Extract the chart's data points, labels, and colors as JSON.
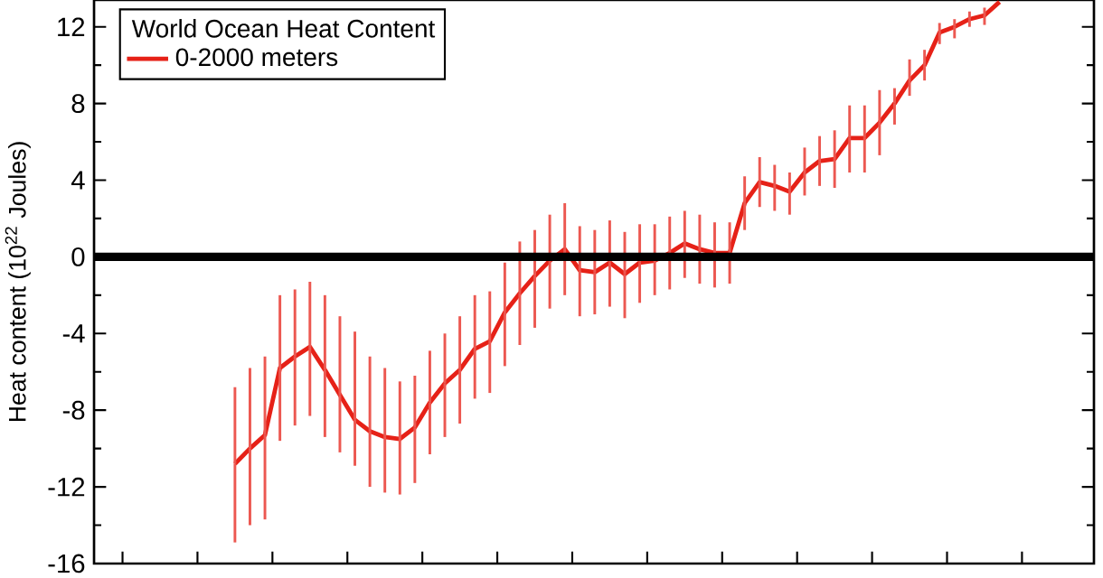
{
  "chart_data": {
    "type": "line",
    "ylabel": "Heat content (10$^{22}$ Joules)",
    "legend_title": "World Ocean Heat Content",
    "categories": [
      null,
      null,
      null,
      null,
      null,
      null,
      null,
      null,
      null,
      null,
      null,
      null,
      null,
      null,
      null,
      null,
      null,
      null,
      null,
      null,
      null,
      null,
      null,
      null,
      null,
      null,
      null,
      null,
      null,
      null,
      null,
      null,
      null,
      null,
      null,
      null,
      null,
      null,
      null,
      null,
      null,
      null,
      null,
      null,
      null,
      null,
      null,
      null,
      null,
      null,
      null,
      null
    ],
    "series": [
      {
        "name": "0-2000 meters",
        "color": "#e62117",
        "values": [
          -10.8,
          -10.0,
          -9.3,
          -5.8,
          -5.2,
          -4.7,
          -5.9,
          -7.2,
          -8.5,
          -9.1,
          -9.4,
          -9.5,
          -8.9,
          -7.6,
          -6.6,
          -5.9,
          -4.8,
          -4.4,
          -2.9,
          -1.9,
          -1.0,
          -0.2,
          0.4,
          -0.7,
          -0.8,
          -0.3,
          -0.9,
          -0.3,
          -0.2,
          0.2,
          0.7,
          0.4,
          0.2,
          0.2,
          2.8,
          3.9,
          3.7,
          3.4,
          4.4,
          5.0,
          5.1,
          6.2,
          6.2,
          7.0,
          8.0,
          9.2,
          10.0,
          11.7,
          12.0,
          12.4,
          12.6,
          13.3
        ],
        "errors": [
          [
            -14.9,
            -6.8
          ],
          [
            -14.0,
            -5.8
          ],
          [
            -13.7,
            -5.2
          ],
          [
            -9.6,
            -2.0
          ],
          [
            -8.8,
            -1.7
          ],
          [
            -8.3,
            -1.3
          ],
          [
            -9.4,
            -2.0
          ],
          [
            -10.2,
            -3.1
          ],
          [
            -10.9,
            -3.9
          ],
          [
            -12.0,
            -5.2
          ],
          [
            -12.3,
            -5.8
          ],
          [
            -12.4,
            -6.5
          ],
          [
            -11.8,
            -6.2
          ],
          [
            -10.3,
            -4.9
          ],
          [
            -9.4,
            -4.0
          ],
          [
            -8.7,
            -3.1
          ],
          [
            -7.4,
            -2.0
          ],
          [
            -7.1,
            -1.8
          ],
          [
            -5.7,
            -0.3
          ],
          [
            -4.6,
            0.8
          ],
          [
            -3.7,
            1.4
          ],
          [
            -2.7,
            2.2
          ],
          [
            -2.0,
            2.8
          ],
          [
            -3.1,
            1.6
          ],
          [
            -3.0,
            1.4
          ],
          [
            -2.6,
            1.9
          ],
          [
            -3.2,
            1.3
          ],
          [
            -2.4,
            1.7
          ],
          [
            -2.0,
            1.7
          ],
          [
            -1.7,
            2.1
          ],
          [
            -1.1,
            2.4
          ],
          [
            -1.4,
            2.2
          ],
          [
            -1.6,
            1.8
          ],
          [
            -1.4,
            1.8
          ],
          [
            1.4,
            4.2
          ],
          [
            2.6,
            5.2
          ],
          [
            2.4,
            4.8
          ],
          [
            2.2,
            4.4
          ],
          [
            3.2,
            5.7
          ],
          [
            3.7,
            6.3
          ],
          [
            3.6,
            6.6
          ],
          [
            4.4,
            7.9
          ],
          [
            4.4,
            7.9
          ],
          [
            5.3,
            8.7
          ],
          [
            6.9,
            8.8
          ],
          [
            8.4,
            10.3
          ],
          [
            9.2,
            10.8
          ],
          [
            11.1,
            12.2
          ],
          [
            11.4,
            12.4
          ],
          [
            12.0,
            12.8
          ],
          [
            12.1,
            13.0
          ],
          null
        ]
      }
    ],
    "ylim": [
      -16,
      13.4
    ],
    "yticks": [
      -16,
      -12,
      -8,
      -4,
      0,
      4,
      8,
      12
    ],
    "ref_lines": [
      {
        "axis": "y",
        "value": 0,
        "color": "#000000"
      }
    ],
    "legend": "top left",
    "tick_labels": "y",
    "line_style": "solid",
    "marker": "none"
  }
}
